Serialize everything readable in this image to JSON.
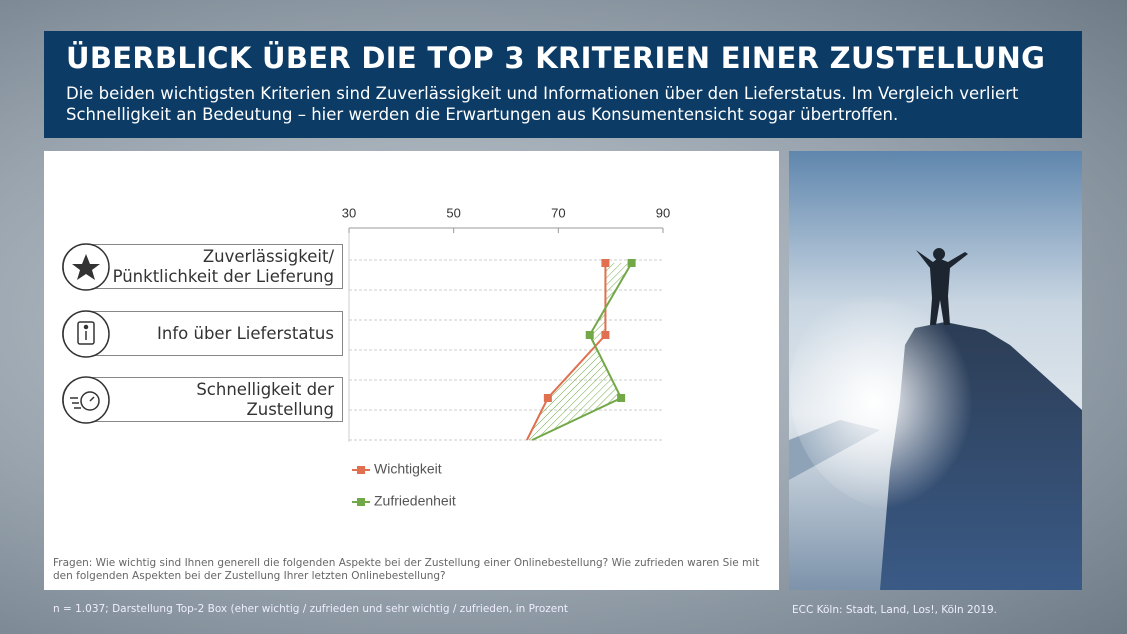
{
  "header": {
    "title": "ÜBERBLICK ÜBER DIE TOP 3 KRITERIEN EINER ZUSTELLUNG",
    "subtitle": "Die beiden wichtigsten Kriterien sind Zuverlässigkeit und Informationen über den Lieferstatus. Im Vergleich verliert Schnelligkeit an Bedeutung – hier werden die Erwartungen aus Konsumentensicht sogar übertroffen."
  },
  "chart_data": {
    "type": "line",
    "categories": [
      "Zuverlässigkeit/\nPünktlichkeit der Lieferung",
      "Info über Lieferstatus",
      "Schnelligkeit der\nZustellung",
      null
    ],
    "xlim": [
      30,
      90
    ],
    "xticks": [
      30,
      50,
      70,
      90
    ],
    "grid": true,
    "series": [
      {
        "name": "Wichtigkeit",
        "color": "#e0704f",
        "values": [
          79,
          79,
          68,
          64
        ]
      },
      {
        "name": "Zufriedenheit",
        "color": "#72a847",
        "values": [
          84,
          76,
          82,
          65
        ]
      }
    ]
  },
  "footnotes": {
    "question": "Fragen: Wie wichtig sind Ihnen generell die folgenden Aspekte bei der Zustellung einer Onlinebestellung? Wie zufrieden waren Sie mit den folgenden Aspekten bei der Zustellung Ihrer letzten Onlinebestellung?",
    "sample": "n = 1.037; Darstellung Top-2 Box (eher wichtig / zufrieden und sehr wichtig / zufrieden, in Prozent"
  },
  "source": "ECC Köln: Stadt, Land, Los!, Köln 2019."
}
